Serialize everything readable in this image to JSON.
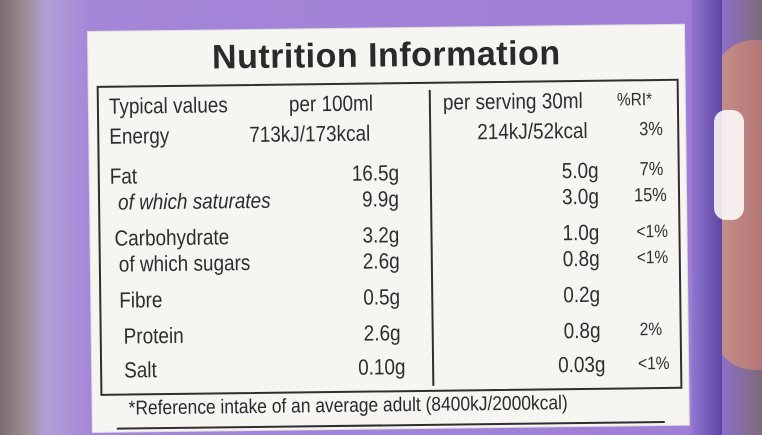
{
  "title": "Nutrition Information",
  "headers": {
    "typical": "Typical values",
    "per100": "per 100ml",
    "serving": "per serving 30ml",
    "ri": "%RI*"
  },
  "rows": [
    {
      "name": "Energy",
      "per100": "713kJ/173kcal",
      "serving": "214kJ/52kcal",
      "ri": "3%"
    },
    {
      "name": "Fat",
      "per100": "16.5g",
      "serving": "5.0g",
      "ri": "7%"
    },
    {
      "name": "of which saturates",
      "per100": "9.9g",
      "serving": "3.0g",
      "ri": "15%"
    },
    {
      "name": "Carbohydrate",
      "per100": "3.2g",
      "serving": "1.0g",
      "ri": "<1%"
    },
    {
      "name": "of which sugars",
      "per100": "2.6g",
      "serving": "0.8g",
      "ri": "<1%"
    },
    {
      "name": "Fibre",
      "per100": "0.5g",
      "serving": "0.2g",
      "ri": ""
    },
    {
      "name": "Protein",
      "per100": "2.6g",
      "serving": "0.8g",
      "ri": "2%"
    },
    {
      "name": "Salt",
      "per100": "0.10g",
      "serving": "0.03g",
      "ri": "<1%"
    }
  ],
  "footnote": "*Reference intake of an average adult (8400kJ/2000kcal)"
}
